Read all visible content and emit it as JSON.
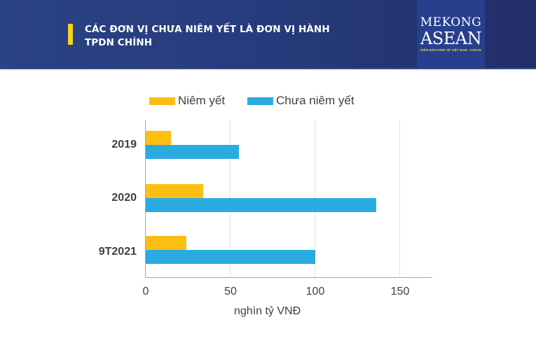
{
  "header": {
    "title_line1": "CÁC ĐƠN VỊ CHƯA NIÊM YẾT LÀ ĐƠN VỊ HÀNH",
    "title_line2": "TPDN CHÍNH",
    "logo_top": "MEKONG",
    "logo_main": "ASEAN",
    "logo_sub": "DIỄN ĐÀN KINH TẾ VIỆT NAM - ASEAN",
    "accent_color": "#f6d21a"
  },
  "legend": {
    "listed": "Niêm yết",
    "unlisted": "Chưa niêm yết"
  },
  "axis": {
    "ticks": [
      "0",
      "50",
      "100",
      "150"
    ],
    "xlabel": "nghìn tỷ VNĐ"
  },
  "colors": {
    "listed": "#fdbe14",
    "unlisted": "#29abe2"
  },
  "chart_data": {
    "type": "bar",
    "orientation": "horizontal",
    "title": "CÁC ĐƠN VỊ CHƯA NIÊM YẾT LÀ ĐƠN VỊ HÀNH TPDN CHÍNH",
    "categories": [
      "2019",
      "2020",
      "9T2021"
    ],
    "series": [
      {
        "name": "Niêm yết",
        "values": [
          15,
          34,
          24
        ],
        "color": "#fdbe14"
      },
      {
        "name": "Chưa niêm yết",
        "values": [
          55,
          136,
          100
        ],
        "color": "#29abe2"
      }
    ],
    "xlabel": "nghìn tỷ VNĐ",
    "ylabel": "",
    "xlim": [
      0,
      170
    ],
    "xticks": [
      0,
      50,
      100,
      150
    ],
    "grid": true,
    "legend_position": "top"
  }
}
